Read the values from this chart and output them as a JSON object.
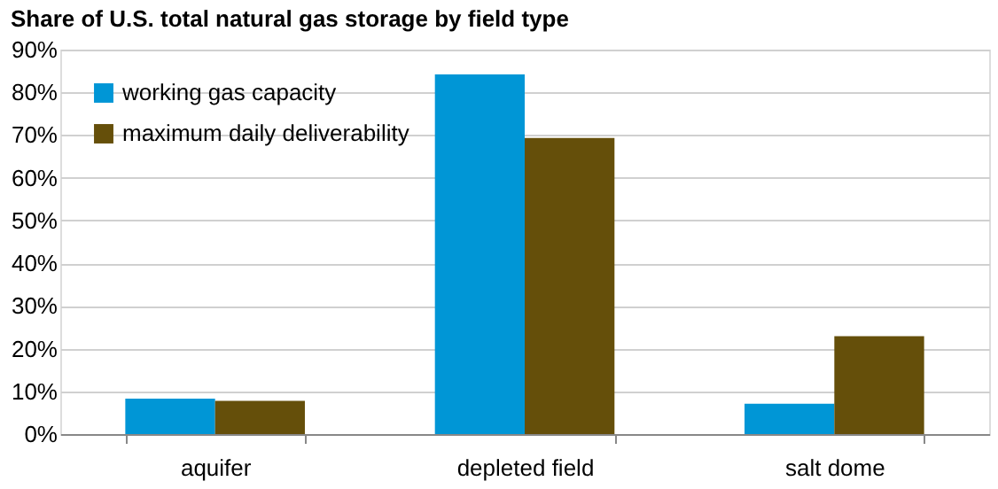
{
  "chart_data": {
    "type": "bar",
    "title": "Share of U.S. total natural gas storage by field type",
    "categories": [
      "aquifer",
      "depleted field",
      "salt dome"
    ],
    "series": [
      {
        "name": "working gas capacity",
        "color": "#0096d6",
        "values": [
          8.3,
          84.2,
          7.1
        ]
      },
      {
        "name": "maximum daily deliverability",
        "color": "#654f0a",
        "values": [
          7.8,
          69.3,
          22.9
        ]
      }
    ],
    "ylim": [
      0,
      90
    ],
    "yticks": [
      {
        "value": 0,
        "label": "0%"
      },
      {
        "value": 10,
        "label": "10%"
      },
      {
        "value": 20,
        "label": "20%"
      },
      {
        "value": 30,
        "label": "30%"
      },
      {
        "value": 40,
        "label": "40%"
      },
      {
        "value": 50,
        "label": "50%"
      },
      {
        "value": 60,
        "label": "60%"
      },
      {
        "value": 70,
        "label": "70%"
      },
      {
        "value": 80,
        "label": "80%"
      },
      {
        "value": 90,
        "label": "90%"
      }
    ],
    "grid": "y",
    "legend": "top left"
  }
}
